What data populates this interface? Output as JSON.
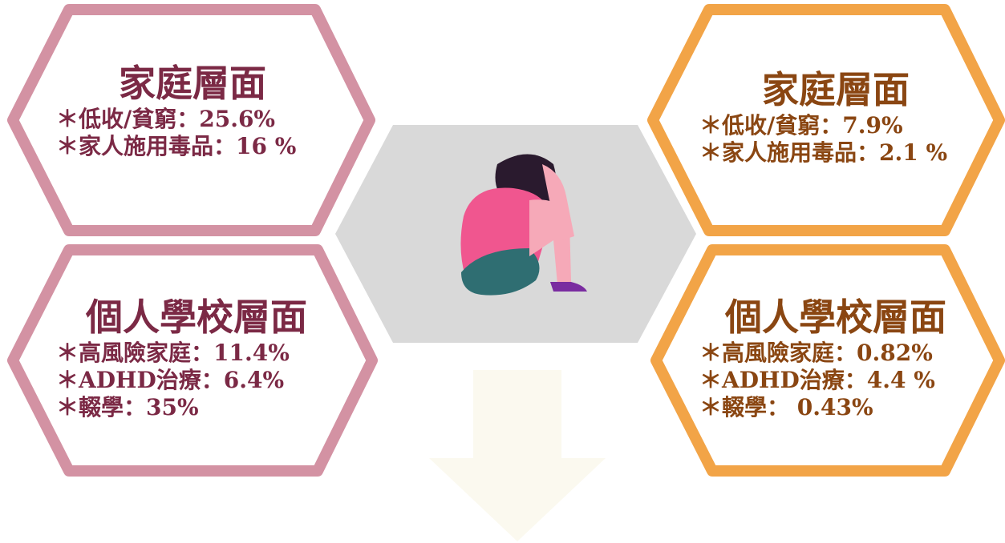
{
  "panels": [
    {
      "title": "家庭層面",
      "lines": [
        "＊低收/貧窮：25.6%",
        "＊家人施用毒品：16 %"
      ]
    },
    {
      "title": "個人學校層面",
      "lines": [
        "＊高風險家庭：11.4%",
        "＊ADHD治療：6.4%",
        "＊輟學：35%"
      ]
    },
    {
      "title": "家庭層面",
      "lines": [
        "＊低收/貧窮：7.9%",
        "＊家人施用毒品：2.1 %"
      ]
    },
    {
      "title": "個人學校層面",
      "lines": [
        "＊高風險家庭：0.82%",
        "＊ADHD治療：4.4 %",
        "＊輟學： 0.43%"
      ]
    }
  ]
}
